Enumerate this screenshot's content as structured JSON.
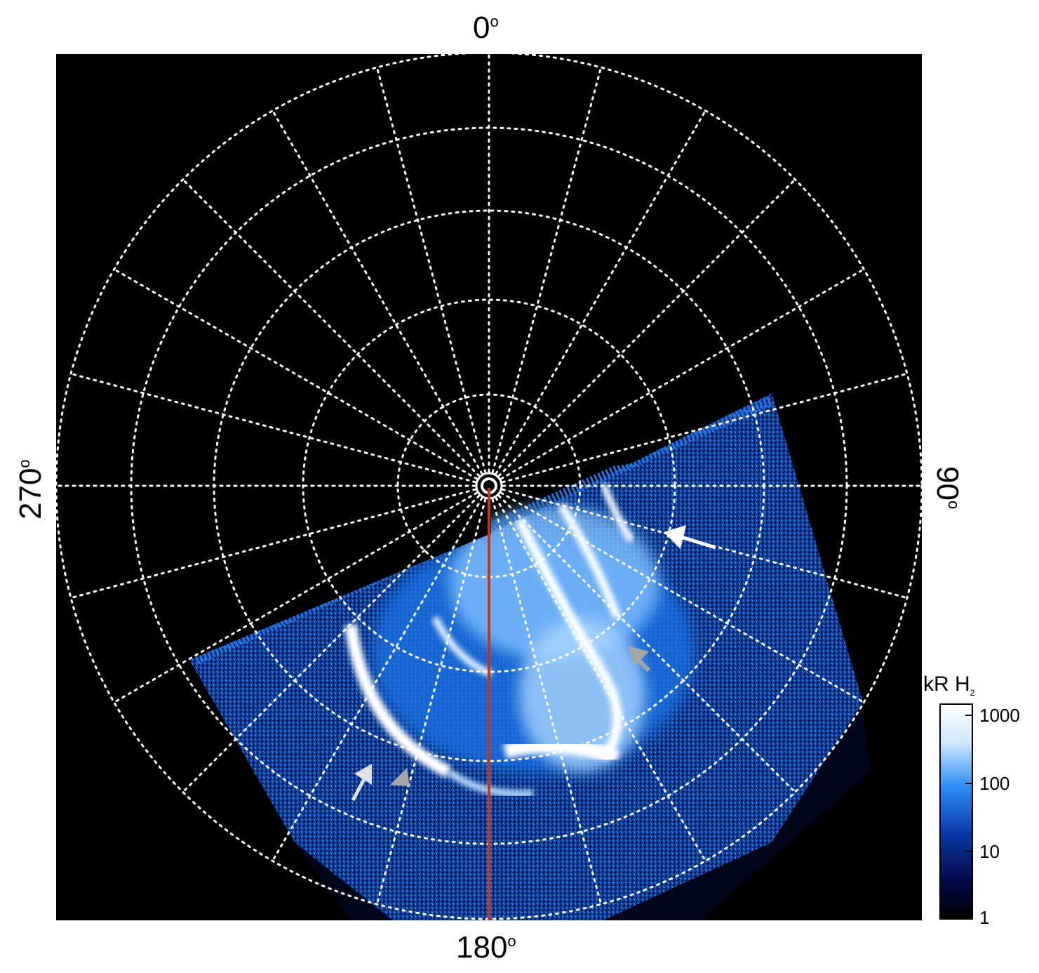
{
  "axis_labels": {
    "top": "0",
    "bottom": "180",
    "left": "270",
    "right": "90",
    "degree_symbol": "o"
  },
  "colorbar": {
    "title_main": "kR H",
    "title_sub": "2",
    "ticks": [
      "1000",
      "100",
      "10",
      "1"
    ],
    "colors": [
      "#ffffff",
      "#cfe8ff",
      "#2f8ff5",
      "#0a3aa8",
      "#020a4a",
      "#000000"
    ]
  },
  "image": {
    "background": "#000000",
    "grid_color": "#ffffff",
    "meridian_color": "#cc3311",
    "arrow_white": "#ffffff",
    "arrow_gray": "#a6a6a6"
  }
}
